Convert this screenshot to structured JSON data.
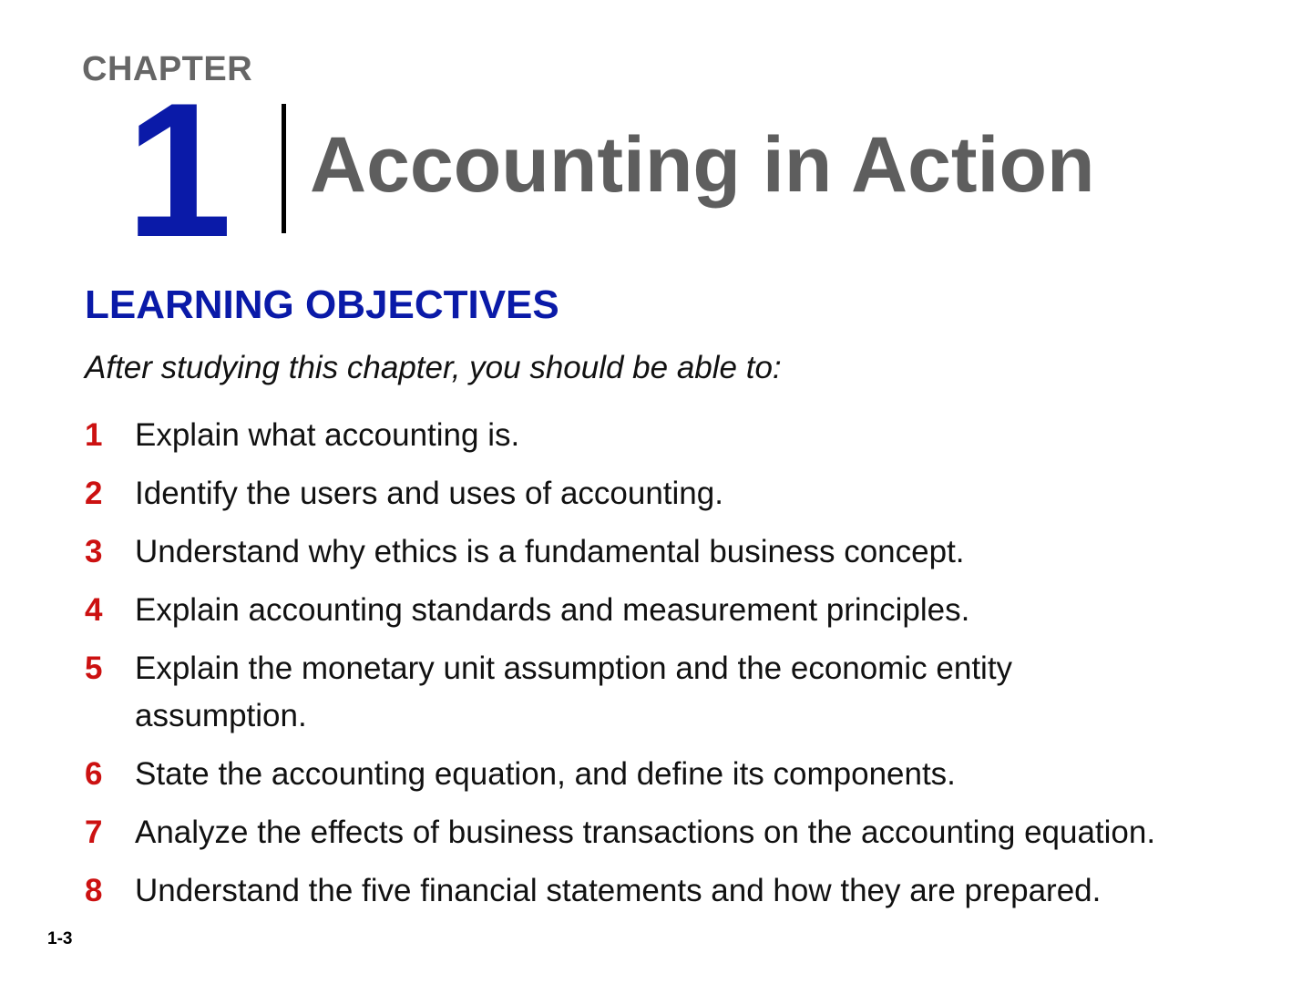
{
  "header": {
    "chapter_label": "CHAPTER",
    "chapter_number": "1",
    "title": "Accounting in Action"
  },
  "objectives": {
    "heading": "LEARNING OBJECTIVES",
    "intro": "After studying this chapter, you should be able to:",
    "items": [
      {
        "number": "1",
        "text": "Explain what accounting is."
      },
      {
        "number": "2",
        "text": "Identify the users and uses of accounting."
      },
      {
        "number": "3",
        "text": "Understand why ethics is a fundamental business concept."
      },
      {
        "number": "4",
        "text": "Explain accounting standards and measurement principles."
      },
      {
        "number": "5",
        "text": "Explain the monetary unit assumption and the economic entity assumption."
      },
      {
        "number": "6",
        "text": "State the accounting equation, and define its components."
      },
      {
        "number": "7",
        "text": "Analyze the effects of business transactions on the accounting equation."
      },
      {
        "number": "8",
        "text": "Understand the five financial statements and how they are prepared."
      }
    ]
  },
  "footer": {
    "slide_number": "1-3"
  },
  "colors": {
    "chapter_blue": "#0a1aa8",
    "number_red": "#cc1111",
    "title_gray": "#5e5e5e"
  }
}
